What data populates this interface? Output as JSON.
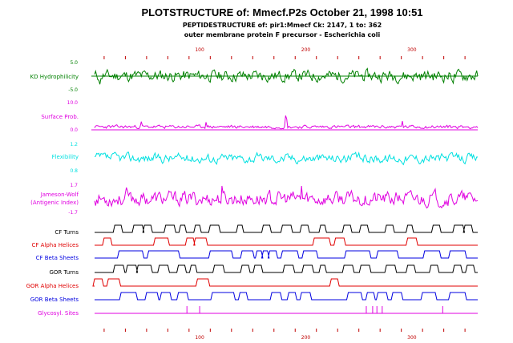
{
  "header": {
    "title": "PLOTSTRUCTURE of: Mmecf.P2s  October 21, 1998 10:51",
    "subtitle1": "PEPTIDESTRUCTURE of: pir1:Mmecf  Ck: 2147,  1 to: 362",
    "subtitle2": "outer membrane protein F precursor - Escherichia coli"
  },
  "colors": {
    "green": "#008000",
    "magenta": "#e000e0",
    "cyan": "#00e0e0",
    "black": "#000000",
    "red": "#e00000",
    "blue": "#0000e0",
    "tick": "#c00000"
  },
  "chart_data": {
    "type": "line",
    "x_range": [
      1,
      362
    ],
    "x_ticks": [
      100,
      200,
      300
    ],
    "x_tick_labels": [
      "100",
      "200",
      "300"
    ],
    "panels": [
      {
        "id": "kd",
        "label": "KD Hydrophilicity",
        "color_key": "green",
        "y_top_label": "5.0",
        "y_bottom_label": "-5.0",
        "ylim": [
          -5.0,
          5.0
        ],
        "baseline": 0
      },
      {
        "id": "surface",
        "label": "Surface Prob.",
        "color_key": "magenta",
        "y_top_label": "10.0",
        "y_bottom_label": "0.0",
        "ylim": [
          0.0,
          10.0
        ],
        "baseline": 0
      },
      {
        "id": "flex",
        "label": "Flexibility",
        "color_key": "cyan",
        "y_top_label": "1.2",
        "y_bottom_label": "0.8",
        "ylim": [
          0.8,
          1.2
        ],
        "baseline": null
      },
      {
        "id": "ji",
        "label": "Jameson-Wolf",
        "label2": "(Antigenic Index)",
        "color_key": "magenta",
        "y_top_label": "1.7",
        "y_bottom_label": "-1.7",
        "ylim": [
          -1.7,
          1.7
        ],
        "baseline": null
      }
    ],
    "tracks": [
      {
        "label": "CF Turns",
        "color_key": "black",
        "segments": [
          [
            20,
            26
          ],
          [
            38,
            46
          ],
          [
            48,
            54
          ],
          [
            68,
            76
          ],
          [
            82,
            86
          ],
          [
            96,
            100
          ],
          [
            110,
            118
          ],
          [
            136,
            140
          ],
          [
            160,
            166
          ],
          [
            178,
            186
          ],
          [
            196,
            202
          ],
          [
            214,
            218
          ],
          [
            236,
            242
          ],
          [
            252,
            258
          ],
          [
            276,
            282
          ],
          [
            296,
            300
          ],
          [
            320,
            326
          ],
          [
            340,
            348
          ],
          [
            350,
            356
          ]
        ]
      },
      {
        "label": "CF Alpha Helices",
        "color_key": "red",
        "segments": [
          [
            10,
            16
          ],
          [
            58,
            70
          ],
          [
            88,
            94
          ],
          [
            96,
            106
          ],
          [
            208,
            222
          ],
          [
            228,
            236
          ],
          [
            296,
            304
          ]
        ]
      },
      {
        "label": "CF Beta Sheets",
        "color_key": "blue",
        "segments": [
          [
            24,
            46
          ],
          [
            52,
            80
          ],
          [
            110,
            130
          ],
          [
            140,
            150
          ],
          [
            154,
            158
          ],
          [
            160,
            164
          ],
          [
            166,
            172
          ],
          [
            178,
            192
          ],
          [
            198,
            210
          ],
          [
            238,
            260
          ],
          [
            268,
            286
          ],
          [
            312,
            326
          ],
          [
            336,
            350
          ]
        ]
      },
      {
        "label": "GOR Turns",
        "color_key": "black",
        "segments": [
          [
            20,
            28
          ],
          [
            32,
            40
          ],
          [
            42,
            54
          ],
          [
            62,
            70
          ],
          [
            80,
            86
          ],
          [
            92,
            96
          ],
          [
            114,
            122
          ],
          [
            140,
            146
          ],
          [
            152,
            158
          ],
          [
            180,
            188
          ],
          [
            198,
            206
          ],
          [
            214,
            218
          ],
          [
            236,
            244
          ],
          [
            252,
            260
          ],
          [
            276,
            284
          ],
          [
            296,
            302
          ],
          [
            318,
            324
          ],
          [
            340,
            346
          ],
          [
            352,
            358
          ]
        ]
      },
      {
        "label": "GOR Alpha Helices",
        "color_key": "red",
        "segments": [
          [
            1,
            8
          ],
          [
            14,
            24
          ],
          [
            98,
            108
          ],
          [
            224,
            230
          ]
        ]
      },
      {
        "label": "GOR Beta Sheets",
        "color_key": "blue",
        "segments": [
          [
            26,
            40
          ],
          [
            50,
            60
          ],
          [
            64,
            72
          ],
          [
            80,
            88
          ],
          [
            112,
            132
          ],
          [
            138,
            144
          ],
          [
            168,
            176
          ],
          [
            184,
            190
          ],
          [
            196,
            204
          ],
          [
            240,
            252
          ],
          [
            258,
            264
          ],
          [
            268,
            276
          ],
          [
            282,
            290
          ],
          [
            310,
            322
          ],
          [
            336,
            350
          ]
        ]
      },
      {
        "label": "Glycosyl. Sites",
        "color_key": "magenta",
        "spikes": [
          88,
          100,
          257,
          263,
          267,
          272,
          329
        ]
      }
    ]
  }
}
